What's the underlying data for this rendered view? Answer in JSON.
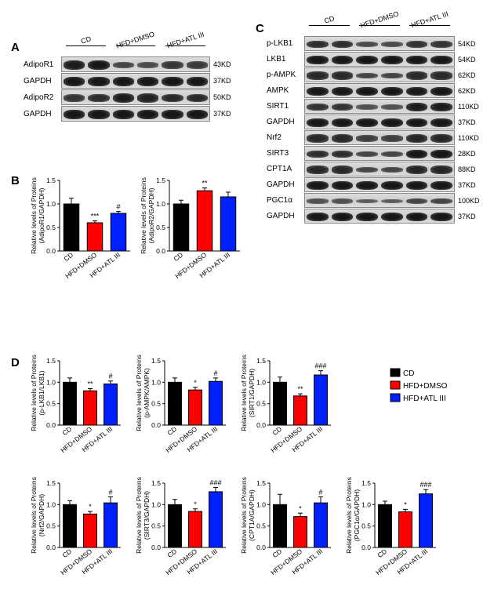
{
  "groups": [
    "CD",
    "HFD+DMSO",
    "HFD+ATL III"
  ],
  "colors": {
    "CD": "#000000",
    "HFD+DMSO": "#ff0000",
    "HFD+ATL III": "#0020ff",
    "axis": "#000000",
    "bg": "#ffffff"
  },
  "panelA": {
    "label": "A",
    "rows": [
      {
        "name": "AdipoR1",
        "kd": "43KD",
        "intensity": [
          0.9,
          0.95,
          0.55,
          0.5,
          0.7,
          0.65
        ]
      },
      {
        "name": "GAPDH",
        "kd": "37KD",
        "intensity": [
          0.95,
          0.95,
          0.95,
          0.95,
          0.95,
          0.95
        ]
      },
      {
        "name": "AdipoR2",
        "kd": "50KD",
        "intensity": [
          0.7,
          0.75,
          0.9,
          0.85,
          0.8,
          0.78
        ]
      },
      {
        "name": "GAPDH",
        "kd": "37KD",
        "intensity": [
          0.95,
          0.95,
          0.95,
          0.95,
          0.95,
          0.95
        ]
      }
    ]
  },
  "panelC": {
    "label": "C",
    "rows": [
      {
        "name": "p-LKB1",
        "kd": "54KD",
        "intensity": [
          0.75,
          0.75,
          0.5,
          0.5,
          0.7,
          0.7
        ]
      },
      {
        "name": "LKB1",
        "kd": "54KD",
        "intensity": [
          0.95,
          0.95,
          0.95,
          0.95,
          0.95,
          0.95
        ]
      },
      {
        "name": "p-AMPK",
        "kd": "62KD",
        "intensity": [
          0.8,
          0.8,
          0.55,
          0.55,
          0.78,
          0.78
        ]
      },
      {
        "name": "AMPK",
        "kd": "62KD",
        "intensity": [
          0.95,
          0.95,
          0.95,
          0.95,
          0.95,
          0.95
        ]
      },
      {
        "name": "SIRT1",
        "kd": "110KD",
        "intensity": [
          0.7,
          0.7,
          0.45,
          0.45,
          0.9,
          0.9
        ]
      },
      {
        "name": "GAPDH",
        "kd": "37KD",
        "intensity": [
          0.95,
          0.95,
          0.95,
          0.95,
          0.95,
          0.95
        ]
      },
      {
        "name": "Nrf2",
        "kd": "110KD",
        "intensity": [
          0.8,
          0.8,
          0.6,
          0.6,
          0.82,
          0.82
        ]
      },
      {
        "name": "SIRT3",
        "kd": "28KD",
        "intensity": [
          0.75,
          0.75,
          0.55,
          0.55,
          0.95,
          0.95
        ]
      },
      {
        "name": "CPT1A",
        "kd": "88KD",
        "intensity": [
          0.8,
          0.8,
          0.55,
          0.55,
          0.82,
          0.82
        ]
      },
      {
        "name": "GAPDH",
        "kd": "37KD",
        "intensity": [
          0.95,
          0.95,
          0.95,
          0.95,
          0.95,
          0.95
        ]
      },
      {
        "name": "PGC1α",
        "kd": "100KD",
        "intensity": [
          0.45,
          0.45,
          0.35,
          0.35,
          0.55,
          0.55
        ]
      },
      {
        "name": "GAPDH",
        "kd": "37KD",
        "intensity": [
          0.95,
          0.95,
          0.95,
          0.95,
          0.95,
          0.95
        ]
      }
    ]
  },
  "panelB": {
    "label": "B",
    "charts": [
      {
        "ylabel1": "Relative levels of Proteins",
        "ylabel2": "(AdipoR1/GAPDH)",
        "ymax": 1.5,
        "ytick": 0.5,
        "values": [
          1.0,
          0.6,
          0.8
        ],
        "errors": [
          0.12,
          0.04,
          0.04
        ],
        "annotations": [
          "",
          "***",
          "#"
        ]
      },
      {
        "ylabel1": "Relative levels of Proteins",
        "ylabel2": "(AdipoR2/GAPDH)",
        "ymax": 1.5,
        "ytick": 0.5,
        "values": [
          1.0,
          1.28,
          1.15
        ],
        "errors": [
          0.08,
          0.06,
          0.1
        ],
        "annotations": [
          "",
          "**",
          ""
        ]
      }
    ]
  },
  "panelD": {
    "label": "D",
    "charts": [
      {
        "ylabel1": "Relative levels of Proteins",
        "ylabel2": "(p-LKB1/LKB1)",
        "ymax": 1.5,
        "ytick": 0.5,
        "values": [
          1.0,
          0.8,
          0.96
        ],
        "errors": [
          0.1,
          0.05,
          0.07
        ],
        "annotations": [
          "",
          "**",
          "#"
        ]
      },
      {
        "ylabel1": "Relative levels of Proteins",
        "ylabel2": "(p-AMPK/AMPK)",
        "ymax": 1.5,
        "ytick": 0.5,
        "values": [
          1.0,
          0.82,
          1.02
        ],
        "errors": [
          0.1,
          0.06,
          0.08
        ],
        "annotations": [
          "",
          "*",
          "#"
        ]
      },
      {
        "ylabel1": "Relative levels of Proteins",
        "ylabel2": "(SIRT1/GAPDH)",
        "ymax": 1.5,
        "ytick": 0.5,
        "values": [
          1.0,
          0.68,
          1.17
        ],
        "errors": [
          0.12,
          0.05,
          0.1
        ],
        "annotations": [
          "",
          "**",
          "###"
        ]
      },
      {
        "ylabel1": "Relative levels of Proteins",
        "ylabel2": "(Nrf2/GAPDH)",
        "ymax": 1.5,
        "ytick": 0.5,
        "values": [
          1.0,
          0.78,
          1.04
        ],
        "errors": [
          0.09,
          0.06,
          0.14
        ],
        "annotations": [
          "",
          "*",
          "#"
        ]
      },
      {
        "ylabel1": "Relative levels of Proteins",
        "ylabel2": "(SIRT3/GAPDH)",
        "ymax": 1.5,
        "ytick": 0.5,
        "values": [
          1.0,
          0.84,
          1.3
        ],
        "errors": [
          0.12,
          0.06,
          0.1
        ],
        "annotations": [
          "",
          "*",
          "###"
        ]
      },
      {
        "ylabel1": "Relative levels of Proteins",
        "ylabel2": "(CPT1A/GAPDH)",
        "ymax": 1.5,
        "ytick": 0.5,
        "values": [
          1.0,
          0.72,
          1.04
        ],
        "errors": [
          0.24,
          0.08,
          0.14
        ],
        "annotations": [
          "",
          "*",
          "#"
        ]
      },
      {
        "ylabel1": "Relative levels of Proteins",
        "ylabel2": "(PGC1α/GAPDH)",
        "ymax": 1.5,
        "ytick": 0.5,
        "values": [
          1.0,
          0.83,
          1.25
        ],
        "errors": [
          0.08,
          0.06,
          0.1
        ],
        "annotations": [
          "",
          "*",
          "###"
        ]
      }
    ],
    "legend": [
      "CD",
      "HFD+DMSO",
      "HFD+ATL III"
    ]
  },
  "style": {
    "bar_width": 0.65,
    "font_size_axis": 8.5,
    "font_size_label": 10
  }
}
